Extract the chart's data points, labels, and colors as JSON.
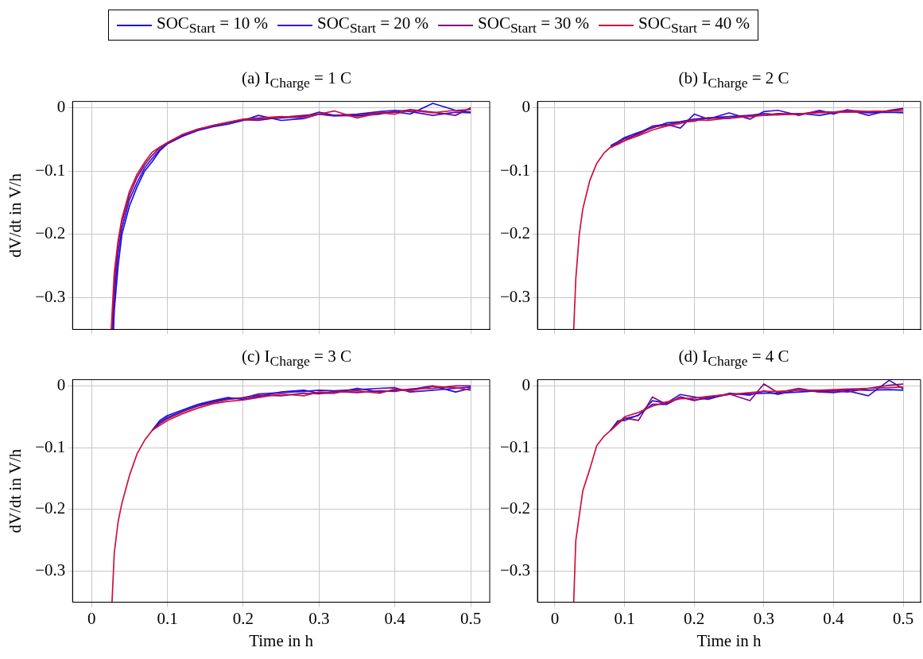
{
  "chart_data": [
    {
      "type": "line",
      "title": "(a) I$_{Charge}$ = 1 C",
      "ylabel": "dV/dt in V/h",
      "legend": "top",
      "grid": true,
      "tick_labels": "y",
      "xlim": [
        -0.025,
        0.525
      ],
      "ylim": [
        -0.35,
        0.01
      ],
      "xticks": [
        0,
        0.1,
        0.2,
        0.3,
        0.4,
        0.5
      ],
      "yticks": [
        {
          "value": -0.3,
          "label": "−0.3"
        },
        {
          "value": -0.2,
          "label": "−0.2"
        },
        {
          "value": -0.1,
          "label": "−0.1"
        },
        {
          "value": 0,
          "label": "0"
        }
      ],
      "series": [
        {
          "name": "SOC$_{Start}$ = 10 %",
          "color": "#1010f0",
          "x": [
            0.029,
            0.03,
            0.035,
            0.04,
            0.05,
            0.06,
            0.07,
            0.08,
            0.09,
            0.1,
            0.12,
            0.14,
            0.16,
            0.18,
            0.2,
            0.22,
            0.25,
            0.28,
            0.3,
            0.32,
            0.35,
            0.38,
            0.4,
            0.42,
            0.45,
            0.48,
            0.5
          ],
          "values": [
            -0.35,
            -0.32,
            -0.25,
            -0.2,
            -0.155,
            -0.125,
            -0.1,
            -0.085,
            -0.068,
            -0.057,
            -0.045,
            -0.036,
            -0.03,
            -0.026,
            -0.02,
            -0.012,
            -0.02,
            -0.017,
            -0.01,
            -0.012,
            -0.013,
            -0.01,
            -0.006,
            -0.01,
            0.007,
            -0.004,
            -0.007
          ]
        },
        {
          "name": "SOC$_{Start}$ = 20 %",
          "color": "#4010c8",
          "x": [
            0.028,
            0.03,
            0.035,
            0.04,
            0.05,
            0.06,
            0.07,
            0.08,
            0.09,
            0.1,
            0.12,
            0.14,
            0.16,
            0.18,
            0.2,
            0.22,
            0.25,
            0.28,
            0.3,
            0.32,
            0.35,
            0.38,
            0.4,
            0.42,
            0.45,
            0.48,
            0.5
          ],
          "values": [
            -0.35,
            -0.3,
            -0.23,
            -0.19,
            -0.145,
            -0.118,
            -0.095,
            -0.08,
            -0.066,
            -0.056,
            -0.044,
            -0.035,
            -0.029,
            -0.024,
            -0.019,
            -0.018,
            -0.016,
            -0.014,
            -0.007,
            -0.012,
            -0.01,
            -0.006,
            -0.004,
            -0.006,
            -0.012,
            -0.007,
            -0.008
          ]
        },
        {
          "name": "SOC$_{Start}$ = 30 %",
          "color": "#800a80",
          "x": [
            0.027,
            0.03,
            0.035,
            0.04,
            0.05,
            0.06,
            0.07,
            0.08,
            0.09,
            0.1,
            0.12,
            0.14,
            0.16,
            0.18,
            0.2,
            0.22,
            0.25,
            0.28,
            0.3,
            0.32,
            0.35,
            0.38,
            0.4,
            0.42,
            0.45,
            0.48,
            0.5
          ],
          "values": [
            -0.35,
            -0.28,
            -0.215,
            -0.18,
            -0.138,
            -0.11,
            -0.09,
            -0.075,
            -0.063,
            -0.055,
            -0.043,
            -0.034,
            -0.028,
            -0.023,
            -0.019,
            -0.02,
            -0.015,
            -0.012,
            -0.01,
            -0.013,
            -0.011,
            -0.008,
            -0.007,
            -0.003,
            -0.007,
            -0.012,
            0
          ]
        },
        {
          "name": "SOC$_{Start}$ = 40 %",
          "color": "#d0103c",
          "x": [
            0.026,
            0.03,
            0.035,
            0.04,
            0.05,
            0.06,
            0.07,
            0.08,
            0.09,
            0.1,
            0.12,
            0.14,
            0.16,
            0.18,
            0.2,
            0.22,
            0.25,
            0.28,
            0.3,
            0.32,
            0.35,
            0.38,
            0.4,
            0.42,
            0.45,
            0.48,
            0.5
          ],
          "values": [
            -0.35,
            -0.26,
            -0.21,
            -0.175,
            -0.132,
            -0.105,
            -0.086,
            -0.07,
            -0.062,
            -0.055,
            -0.042,
            -0.034,
            -0.028,
            -0.023,
            -0.018,
            -0.016,
            -0.014,
            -0.016,
            -0.01,
            -0.005,
            -0.016,
            -0.008,
            -0.01,
            -0.004,
            -0.008,
            -0.004,
            -0.003
          ]
        }
      ]
    },
    {
      "type": "line",
      "title": "(b) I$_{Charge}$ = 2 C",
      "grid": true,
      "tick_labels": "y",
      "xlim": [
        -0.025,
        0.525
      ],
      "ylim": [
        -0.35,
        0.01
      ],
      "xticks": [
        0,
        0.1,
        0.2,
        0.3,
        0.4,
        0.5
      ],
      "yticks": [
        {
          "value": -0.3,
          "label": "−0.3"
        },
        {
          "value": -0.2,
          "label": "−0.2"
        },
        {
          "value": -0.1,
          "label": "−0.1"
        },
        {
          "value": 0,
          "label": "0"
        }
      ],
      "x": [
        0.027,
        0.03,
        0.035,
        0.04,
        0.05,
        0.06,
        0.07,
        0.08,
        0.09,
        0.1,
        0.12,
        0.14,
        0.16,
        0.18,
        0.2,
        0.22,
        0.25,
        0.28,
        0.3,
        0.32,
        0.35,
        0.38,
        0.4,
        0.42,
        0.45,
        0.48,
        0.5
      ],
      "series": [
        {
          "color": "#1010f0",
          "values": [
            null,
            null,
            null,
            null,
            null,
            null,
            null,
            -0.06,
            -0.054,
            -0.047,
            -0.039,
            -0.032,
            -0.024,
            -0.022,
            -0.018,
            -0.016,
            -0.014,
            -0.012,
            -0.009,
            -0.011,
            -0.009,
            -0.012,
            -0.008,
            -0.006,
            -0.008,
            -0.007,
            -0.008
          ]
        },
        {
          "color": "#4010c8",
          "values": [
            null,
            null,
            null,
            null,
            null,
            null,
            null,
            -0.063,
            -0.057,
            -0.052,
            -0.04,
            -0.029,
            -0.026,
            -0.032,
            -0.01,
            -0.018,
            -0.008,
            -0.018,
            -0.006,
            -0.004,
            -0.012,
            -0.004,
            -0.01,
            -0.003,
            -0.012,
            -0.004,
            -0.001
          ]
        },
        {
          "color": "#800a80",
          "values": [
            null,
            null,
            null,
            null,
            null,
            null,
            null,
            -0.062,
            -0.055,
            -0.049,
            -0.042,
            -0.031,
            -0.027,
            -0.023,
            -0.021,
            -0.016,
            -0.017,
            -0.012,
            -0.012,
            -0.009,
            -0.01,
            -0.006,
            -0.007,
            -0.004,
            -0.006,
            -0.005,
            -0.002
          ]
        },
        {
          "color": "#d0103c",
          "values": [
            -0.35,
            -0.27,
            -0.2,
            -0.16,
            -0.115,
            -0.088,
            -0.072,
            -0.062,
            -0.058,
            -0.052,
            -0.044,
            -0.035,
            -0.029,
            -0.025,
            -0.019,
            -0.02,
            -0.016,
            -0.014,
            -0.012,
            -0.011,
            -0.01,
            -0.008,
            -0.007,
            -0.007,
            -0.006,
            -0.005,
            -0.005
          ]
        }
      ]
    },
    {
      "type": "line",
      "title": "(c) I$_{Charge}$ = 3 C",
      "xlabel": "Time in h",
      "ylabel": "dV/dt in V/h",
      "grid": true,
      "xlim": [
        -0.025,
        0.525
      ],
      "ylim": [
        -0.35,
        0.01
      ],
      "xticks": [
        0,
        0.1,
        0.2,
        0.3,
        0.4,
        0.5
      ],
      "yticks": [
        {
          "value": -0.3,
          "label": "−0.3"
        },
        {
          "value": -0.2,
          "label": "−0.2"
        },
        {
          "value": -0.1,
          "label": "−0.1"
        },
        {
          "value": 0,
          "label": "0"
        }
      ],
      "x": [
        0.027,
        0.03,
        0.035,
        0.04,
        0.05,
        0.06,
        0.07,
        0.08,
        0.09,
        0.1,
        0.12,
        0.14,
        0.16,
        0.18,
        0.2,
        0.22,
        0.25,
        0.28,
        0.3,
        0.32,
        0.35,
        0.38,
        0.4,
        0.42,
        0.45,
        0.48,
        0.5
      ],
      "series": [
        {
          "color": "#1010f0",
          "values": [
            null,
            null,
            null,
            null,
            null,
            null,
            null,
            -0.072,
            -0.056,
            -0.048,
            -0.039,
            -0.03,
            -0.024,
            -0.019,
            -0.022,
            -0.017,
            -0.01,
            -0.007,
            -0.012,
            -0.012,
            -0.004,
            -0.01,
            -0.007,
            -0.006,
            0,
            -0.01,
            -0.004
          ]
        },
        {
          "color": "#4010c8",
          "values": [
            null,
            null,
            null,
            null,
            null,
            null,
            null,
            -0.072,
            -0.059,
            -0.051,
            -0.041,
            -0.032,
            -0.025,
            -0.021,
            -0.02,
            -0.013,
            -0.011,
            -0.009,
            -0.007,
            -0.008,
            -0.006,
            -0.004,
            -0.003,
            -0.01,
            -0.007,
            -0.004,
            -0.002
          ]
        },
        {
          "color": "#800a80",
          "values": [
            null,
            null,
            null,
            null,
            null,
            null,
            null,
            -0.072,
            -0.061,
            -0.053,
            -0.042,
            -0.033,
            -0.027,
            -0.022,
            -0.019,
            -0.015,
            -0.016,
            -0.012,
            -0.013,
            -0.009,
            -0.011,
            -0.008,
            -0.009,
            -0.005,
            -0.004,
            0,
            0
          ]
        },
        {
          "color": "#d0103c",
          "values": [
            -0.35,
            -0.27,
            -0.22,
            -0.19,
            -0.145,
            -0.11,
            -0.088,
            -0.072,
            -0.064,
            -0.056,
            -0.045,
            -0.036,
            -0.029,
            -0.025,
            -0.023,
            -0.019,
            -0.013,
            -0.016,
            -0.01,
            -0.011,
            -0.008,
            -0.012,
            -0.005,
            -0.008,
            -0.001,
            -0.003,
            -0.007
          ]
        }
      ]
    },
    {
      "type": "line",
      "title": "(d) I$_{Charge}$ = 4 C",
      "xlabel": "Time in h",
      "grid": true,
      "xlim": [
        -0.025,
        0.525
      ],
      "ylim": [
        -0.35,
        0.01
      ],
      "xticks": [
        0,
        0.1,
        0.2,
        0.3,
        0.4,
        0.5
      ],
      "yticks": [
        {
          "value": -0.3,
          "label": "−0.3"
        },
        {
          "value": -0.2,
          "label": "−0.2"
        },
        {
          "value": -0.1,
          "label": "−0.1"
        },
        {
          "value": 0,
          "label": "0"
        }
      ],
      "x": [
        0.027,
        0.03,
        0.035,
        0.04,
        0.05,
        0.06,
        0.07,
        0.08,
        0.09,
        0.1,
        0.12,
        0.14,
        0.16,
        0.18,
        0.2,
        0.22,
        0.25,
        0.28,
        0.3,
        0.32,
        0.35,
        0.38,
        0.4,
        0.42,
        0.45,
        0.48,
        0.5
      ],
      "series": [
        {
          "color": "#1010f0",
          "values": [
            null,
            null,
            null,
            null,
            null,
            null,
            null,
            -0.072,
            -0.057,
            -0.056,
            -0.047,
            -0.03,
            -0.03,
            -0.018,
            -0.023,
            -0.02,
            -0.014,
            -0.013,
            -0.012,
            -0.012,
            -0.01,
            -0.008,
            -0.008,
            -0.006,
            -0.007,
            -0.006,
            -0.007
          ]
        },
        {
          "color": "#4010c8",
          "values": [
            null,
            null,
            null,
            null,
            null,
            null,
            null,
            -0.072,
            -0.058,
            -0.053,
            -0.048,
            -0.024,
            -0.028,
            -0.014,
            -0.018,
            -0.022,
            -0.012,
            -0.015,
            -0.008,
            -0.014,
            -0.006,
            -0.01,
            -0.011,
            -0.008,
            -0.016,
            0.009,
            -0.005
          ]
        },
        {
          "color": "#800a80",
          "values": [
            null,
            null,
            null,
            null,
            null,
            null,
            null,
            -0.072,
            -0.062,
            -0.052,
            -0.056,
            -0.018,
            -0.03,
            -0.018,
            -0.024,
            -0.018,
            -0.013,
            -0.024,
            0.003,
            -0.011,
            -0.004,
            -0.01,
            -0.008,
            -0.01,
            -0.004,
            0.001,
            0.003
          ]
        },
        {
          "color": "#d0103c",
          "values": [
            -0.35,
            -0.25,
            -0.21,
            -0.17,
            -0.135,
            -0.097,
            -0.082,
            -0.072,
            -0.061,
            -0.05,
            -0.043,
            -0.033,
            -0.026,
            -0.021,
            -0.02,
            -0.017,
            -0.014,
            -0.011,
            -0.009,
            -0.009,
            -0.007,
            -0.007,
            -0.006,
            -0.005,
            -0.004,
            -0.003,
            -0.002
          ]
        }
      ]
    }
  ]
}
